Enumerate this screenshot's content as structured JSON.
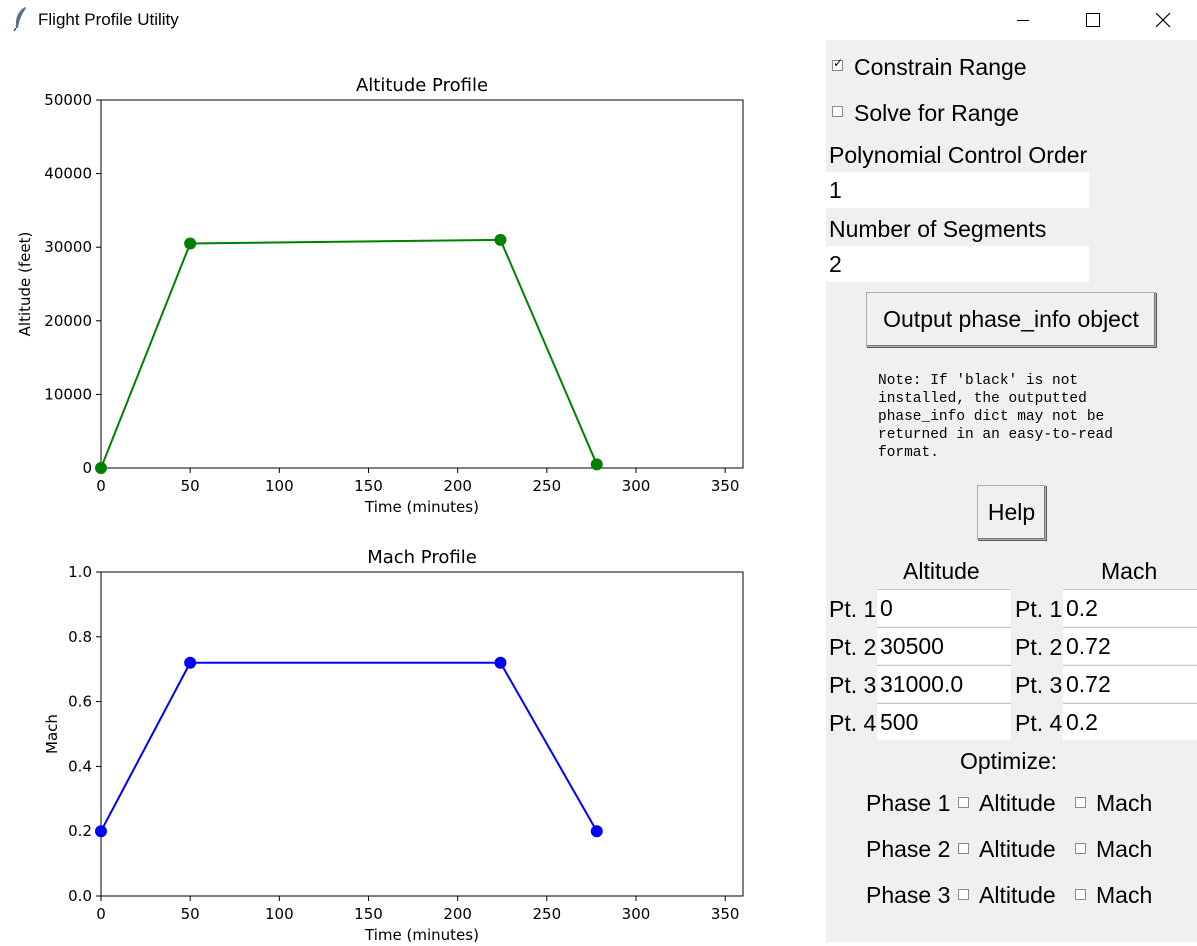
{
  "window": {
    "title": "Flight Profile Utility",
    "controls": {
      "minimize": "minimize-icon",
      "maximize": "maximize-icon",
      "close": "close-icon"
    }
  },
  "panel": {
    "constrain_range": {
      "label": "Constrain Range",
      "checked": true
    },
    "solve_for_range": {
      "label": "Solve for Range",
      "checked": false
    },
    "polynomial_label": "Polynomial Control Order",
    "polynomial_value": "1",
    "segments_label": "Number of Segments",
    "segments_value": "2",
    "output_button": "Output phase_info object",
    "note_lines": [
      "Note: If 'black' is not",
      "installed, the outputted",
      "phase_info dict may not be",
      "returned in an easy-to-read",
      "format."
    ],
    "help_button": "Help",
    "altitude_header": "Altitude",
    "mach_header": "Mach",
    "points": [
      {
        "label": "Pt. 1",
        "altitude": "0",
        "mach": "0.2"
      },
      {
        "label": "Pt. 2",
        "altitude": "30500",
        "mach": "0.72"
      },
      {
        "label": "Pt. 3",
        "altitude": "31000.0",
        "mach": "0.72"
      },
      {
        "label": "Pt. 4",
        "altitude": "500",
        "mach": "0.2"
      }
    ],
    "optimize_label": "Optimize:",
    "phases": [
      {
        "label": "Phase 1",
        "altitude_label": "Altitude",
        "mach_label": "Mach",
        "altitude_checked": false,
        "mach_checked": false
      },
      {
        "label": "Phase 2",
        "altitude_label": "Altitude",
        "mach_label": "Mach",
        "altitude_checked": false,
        "mach_checked": false
      },
      {
        "label": "Phase 3",
        "altitude_label": "Altitude",
        "mach_label": "Mach",
        "altitude_checked": false,
        "mach_checked": false
      }
    ]
  },
  "chart_data": [
    {
      "type": "line",
      "title": "Altitude Profile",
      "xlabel": "Time (minutes)",
      "ylabel": "Altitude (feet)",
      "xlim": [
        0,
        360
      ],
      "ylim": [
        0,
        50000
      ],
      "xticks": [
        "0",
        "50",
        "100",
        "150",
        "200",
        "250",
        "300",
        "350"
      ],
      "yticks": [
        "0",
        "10000",
        "20000",
        "30000",
        "40000",
        "50000"
      ],
      "color": "#008000",
      "x": [
        0,
        50,
        224,
        278
      ],
      "y": [
        0,
        30500,
        31000,
        500
      ]
    },
    {
      "type": "line",
      "title": "Mach Profile",
      "xlabel": "Time (minutes)",
      "ylabel": "Mach",
      "xlim": [
        0,
        360
      ],
      "ylim": [
        0,
        1.0
      ],
      "xticks": [
        "0",
        "50",
        "100",
        "150",
        "200",
        "250",
        "300",
        "350"
      ],
      "yticks": [
        "0.0",
        "0.2",
        "0.4",
        "0.6",
        "0.8",
        "1.0"
      ],
      "color": "#0000ff",
      "x": [
        0,
        50,
        224,
        278
      ],
      "y": [
        0.2,
        0.72,
        0.72,
        0.2
      ]
    }
  ]
}
